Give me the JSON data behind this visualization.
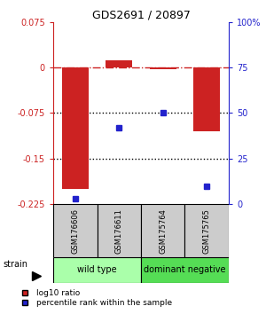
{
  "title": "GDS2691 / 20897",
  "samples": [
    "GSM176606",
    "GSM176611",
    "GSM175764",
    "GSM175765"
  ],
  "log10_ratio": [
    -0.2,
    0.012,
    -0.003,
    -0.105
  ],
  "percentile_rank": [
    3,
    42,
    50,
    10
  ],
  "ylim_left": [
    -0.225,
    0.075
  ],
  "ylim_right": [
    0,
    100
  ],
  "yticks_left": [
    0.075,
    0,
    -0.075,
    -0.15,
    -0.225
  ],
  "yticks_right": [
    100,
    75,
    50,
    25,
    0
  ],
  "groups": [
    {
      "label": "wild type",
      "samples": [
        0,
        1
      ],
      "color": "#aaffaa"
    },
    {
      "label": "dominant negative",
      "samples": [
        2,
        3
      ],
      "color": "#55dd55"
    }
  ],
  "strain_label": "strain",
  "bar_color": "#cc2222",
  "marker_color": "#2222cc",
  "bar_width": 0.6,
  "legend_items": [
    {
      "color": "#cc2222",
      "label": "log10 ratio"
    },
    {
      "color": "#2222cc",
      "label": "percentile rank within the sample"
    }
  ],
  "hline_color": "#cc2222",
  "dotted_lines": [
    -0.075,
    -0.15
  ],
  "dotted_color": "black",
  "sample_box_color": "#cccccc",
  "title_fontsize": 9,
  "tick_fontsize": 7,
  "sample_fontsize": 6,
  "group_fontsize": 7,
  "legend_fontsize": 6.5
}
